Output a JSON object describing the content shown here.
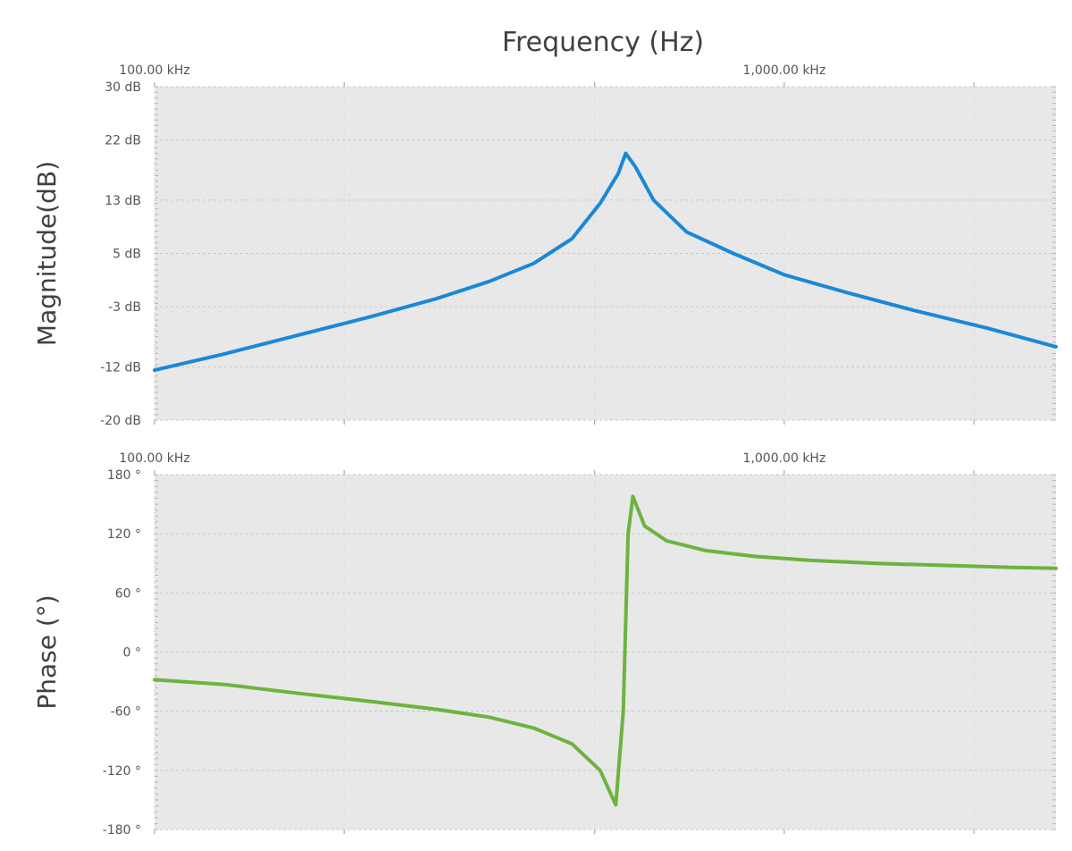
{
  "chart_data": [
    {
      "type": "line",
      "title": "Frequency (Hz)",
      "ylabel": "Magnitude(dB)",
      "x_scale": "log",
      "x_tick_labels": [
        {
          "value": 100000,
          "label": "100.00 kHz"
        },
        {
          "value": 1000000,
          "label": "1,000.00 kHz"
        }
      ],
      "xlim": [
        100000,
        2700000
      ],
      "ylim": [
        -20,
        30
      ],
      "y_ticks": [
        {
          "value": 30,
          "label": "30 dB"
        },
        {
          "value": 22,
          "label": "22 dB"
        },
        {
          "value": 13,
          "label": "13 dB"
        },
        {
          "value": 5,
          "label": "5 dB"
        },
        {
          "value": -3,
          "label": "-3 dB"
        },
        {
          "value": -12,
          "label": "-12 dB"
        },
        {
          "value": -20,
          "label": "-20 dB"
        }
      ],
      "grid": true,
      "series": [
        {
          "color": "#1a88d8",
          "x": [
            100000,
            130000,
            170000,
            220000,
            280000,
            340000,
            400000,
            460000,
            510000,
            545000,
            560000,
            580000,
            620000,
            700000,
            830000,
            1000000,
            1250000,
            1600000,
            2100000,
            2700000
          ],
          "y": [
            -12.5,
            -10,
            -7.2,
            -4.5,
            -1.8,
            0.8,
            3.5,
            7.2,
            12.5,
            17,
            20,
            18,
            13,
            8.2,
            5,
            1.8,
            -0.8,
            -3.5,
            -6.2,
            -9
          ]
        }
      ]
    },
    {
      "type": "line",
      "ylabel": "Phase (°)",
      "x_scale": "log",
      "x_tick_labels": [
        {
          "value": 100000,
          "label": "100.00 kHz"
        },
        {
          "value": 1000000,
          "label": "1,000.00 kHz"
        }
      ],
      "xlim": [
        100000,
        2700000
      ],
      "ylim": [
        -180,
        180
      ],
      "y_ticks": [
        {
          "value": 180,
          "label": "180 °"
        },
        {
          "value": 120,
          "label": "120 °"
        },
        {
          "value": 60,
          "label": "60 °"
        },
        {
          "value": 0,
          "label": "0 °"
        },
        {
          "value": -60,
          "label": "-60 °"
        },
        {
          "value": -120,
          "label": "-120 °"
        },
        {
          "value": -180,
          "label": "-180 °"
        }
      ],
      "grid": true,
      "series": [
        {
          "color": "#6db33f",
          "x": [
            100000,
            130000,
            170000,
            220000,
            280000,
            340000,
            400000,
            460000,
            510000,
            540000,
            555000,
            565000,
            575000,
            600000,
            650000,
            750000,
            900000,
            1100000,
            1400000,
            1800000,
            2300000,
            2700000
          ],
          "y": [
            -28,
            -33,
            -42,
            -50,
            -58,
            -66,
            -77,
            -93,
            -120,
            -155,
            -60,
            120,
            158,
            128,
            113,
            103,
            97,
            93,
            90,
            88,
            86,
            85
          ]
        }
      ]
    }
  ]
}
